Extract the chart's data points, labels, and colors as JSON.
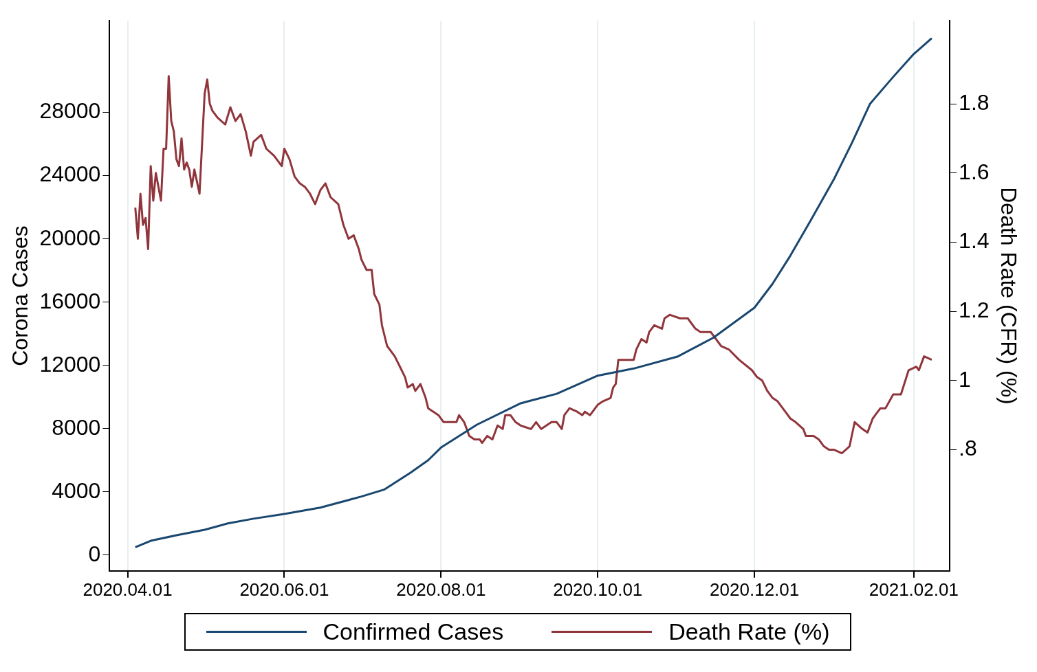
{
  "chart_data": {
    "type": "line",
    "ylabel": "Corona Cases",
    "y2label": "Death Rate (CFR) (%)",
    "xlim": [
      "2020-03-25",
      "2021-02-15"
    ],
    "xticks": [
      {
        "value": "2020-04-01",
        "label": "2020.04.01"
      },
      {
        "value": "2020-06-01",
        "label": "2020.06.01"
      },
      {
        "value": "2020-08-01",
        "label": "2020.08.01"
      },
      {
        "value": "2020-10-01",
        "label": "2020.10.01"
      },
      {
        "value": "2020-12-01",
        "label": "2020.12.01"
      },
      {
        "value": "2021-02-01",
        "label": "2021.02.01"
      }
    ],
    "ylim": [
      -1000,
      33800
    ],
    "yticks": [
      0,
      4000,
      8000,
      12000,
      16000,
      20000,
      24000,
      28000
    ],
    "y2lim": [
      0.45,
      2.04
    ],
    "y2ticks": [
      {
        "value": 0.8,
        "label": ".8"
      },
      1,
      1.2,
      1.4,
      1.6,
      1.8
    ],
    "grid": "x",
    "legend": "bottom",
    "line_style": "solid",
    "marker": "none",
    "series": [
      {
        "name": "Confirmed Cases",
        "color": "#1a476f",
        "x": [
          "2020-04-04",
          "2020-04-10",
          "2020-04-20",
          "2020-05-01",
          "2020-05-10",
          "2020-05-20",
          "2020-06-01",
          "2020-06-15",
          "2020-07-01",
          "2020-07-10",
          "2020-07-20",
          "2020-07-27",
          "2020-08-01",
          "2020-08-15",
          "2020-09-01",
          "2020-09-15",
          "2020-10-01",
          "2020-10-15",
          "2020-11-01",
          "2020-11-15",
          "2020-12-01",
          "2020-12-08",
          "2020-12-15",
          "2020-12-23",
          "2021-01-01",
          "2021-01-08",
          "2021-01-15",
          "2021-01-24",
          "2021-02-01",
          "2021-02-08"
        ],
        "values": [
          500,
          900,
          1250,
          1600,
          2000,
          2300,
          2600,
          3000,
          3700,
          4150,
          5200,
          6000,
          6800,
          8250,
          9600,
          10200,
          11350,
          11800,
          12550,
          13750,
          15650,
          17150,
          18950,
          21200,
          23800,
          26100,
          28550,
          30250,
          31700,
          32700
        ]
      },
      {
        "name": "Death Rate (%)",
        "color": "#90353b",
        "axis": "y2",
        "x": [
          "2020-04-04",
          "2020-04-05",
          "2020-04-06",
          "2020-04-07",
          "2020-04-08",
          "2020-04-09",
          "2020-04-10",
          "2020-04-11",
          "2020-04-12",
          "2020-04-14",
          "2020-04-15",
          "2020-04-16",
          "2020-04-17",
          "2020-04-18",
          "2020-04-19",
          "2020-04-20",
          "2020-04-21",
          "2020-04-22",
          "2020-04-23",
          "2020-04-24",
          "2020-04-25",
          "2020-04-26",
          "2020-04-27",
          "2020-04-29",
          "2020-05-01",
          "2020-05-02",
          "2020-05-03",
          "2020-05-04",
          "2020-05-06",
          "2020-05-09",
          "2020-05-11",
          "2020-05-13",
          "2020-05-15",
          "2020-05-17",
          "2020-05-19",
          "2020-05-20",
          "2020-05-23",
          "2020-05-25",
          "2020-05-28",
          "2020-05-31",
          "2020-06-01",
          "2020-06-03",
          "2020-06-05",
          "2020-06-07",
          "2020-06-09",
          "2020-06-11",
          "2020-06-13",
          "2020-06-15",
          "2020-06-17",
          "2020-06-19",
          "2020-06-22",
          "2020-06-24",
          "2020-06-26",
          "2020-06-28",
          "2020-06-30",
          "2020-07-01",
          "2020-07-03",
          "2020-07-05",
          "2020-07-06",
          "2020-07-08",
          "2020-07-09",
          "2020-07-11",
          "2020-07-14",
          "2020-07-16",
          "2020-07-18",
          "2020-07-19",
          "2020-07-21",
          "2020-07-22",
          "2020-07-24",
          "2020-07-26",
          "2020-07-27",
          "2020-07-31",
          "2020-08-02",
          "2020-08-07",
          "2020-08-08",
          "2020-08-10",
          "2020-08-12",
          "2020-08-14",
          "2020-08-16",
          "2020-08-17",
          "2020-08-19",
          "2020-08-21",
          "2020-08-23",
          "2020-08-25",
          "2020-08-26",
          "2020-08-28",
          "2020-08-30",
          "2020-09-01",
          "2020-09-05",
          "2020-09-07",
          "2020-09-09",
          "2020-09-13",
          "2020-09-15",
          "2020-09-17",
          "2020-09-18",
          "2020-09-20",
          "2020-09-23",
          "2020-09-25",
          "2020-09-26",
          "2020-09-28",
          "2020-09-30",
          "2020-10-01",
          "2020-10-03",
          "2020-10-06",
          "2020-10-07",
          "2020-10-08",
          "2020-10-09",
          "2020-10-13",
          "2020-10-15",
          "2020-10-16",
          "2020-10-18",
          "2020-10-20",
          "2020-10-21",
          "2020-10-23",
          "2020-10-26",
          "2020-10-27",
          "2020-10-29",
          "2020-11-02",
          "2020-11-05",
          "2020-11-06",
          "2020-11-08",
          "2020-11-10",
          "2020-11-11",
          "2020-11-14",
          "2020-11-16",
          "2020-11-18",
          "2020-11-21",
          "2020-11-25",
          "2020-11-30",
          "2020-12-02",
          "2020-12-04",
          "2020-12-06",
          "2020-12-08",
          "2020-12-10",
          "2020-12-13",
          "2020-12-15",
          "2020-12-17",
          "2020-12-20",
          "2020-12-21",
          "2020-12-24",
          "2020-12-26",
          "2020-12-28",
          "2020-12-30",
          "2021-01-01",
          "2021-01-04",
          "2021-01-07",
          "2021-01-09",
          "2021-01-12",
          "2021-01-14",
          "2021-01-16",
          "2021-01-17",
          "2021-01-19",
          "2021-01-21",
          "2021-01-24",
          "2021-01-27",
          "2021-01-30",
          "2021-02-02",
          "2021-02-03",
          "2021-02-05",
          "2021-02-08"
        ],
        "values": [
          1.5,
          1.41,
          1.54,
          1.45,
          1.47,
          1.38,
          1.62,
          1.52,
          1.6,
          1.52,
          1.67,
          1.67,
          1.88,
          1.75,
          1.72,
          1.64,
          1.62,
          1.7,
          1.61,
          1.63,
          1.61,
          1.56,
          1.61,
          1.54,
          1.83,
          1.87,
          1.8,
          1.78,
          1.76,
          1.74,
          1.79,
          1.75,
          1.77,
          1.72,
          1.65,
          1.69,
          1.71,
          1.67,
          1.65,
          1.62,
          1.67,
          1.64,
          1.59,
          1.57,
          1.56,
          1.54,
          1.51,
          1.55,
          1.57,
          1.53,
          1.51,
          1.45,
          1.41,
          1.42,
          1.38,
          1.35,
          1.32,
          1.32,
          1.25,
          1.22,
          1.16,
          1.1,
          1.07,
          1.04,
          1.01,
          0.98,
          0.99,
          0.97,
          0.99,
          0.95,
          0.92,
          0.9,
          0.88,
          0.88,
          0.9,
          0.88,
          0.84,
          0.83,
          0.83,
          0.82,
          0.84,
          0.83,
          0.87,
          0.86,
          0.9,
          0.9,
          0.88,
          0.87,
          0.86,
          0.88,
          0.86,
          0.88,
          0.88,
          0.86,
          0.9,
          0.92,
          0.91,
          0.9,
          0.91,
          0.9,
          0.92,
          0.93,
          0.94,
          0.95,
          0.98,
          0.99,
          1.06,
          1.06,
          1.06,
          1.09,
          1.12,
          1.11,
          1.14,
          1.16,
          1.15,
          1.18,
          1.19,
          1.18,
          1.18,
          1.17,
          1.15,
          1.14,
          1.14,
          1.14,
          1.12,
          1.1,
          1.09,
          1.06,
          1.03,
          1.01,
          1.0,
          0.97,
          0.95,
          0.94,
          0.91,
          0.89,
          0.88,
          0.86,
          0.84,
          0.84,
          0.83,
          0.81,
          0.8,
          0.8,
          0.79,
          0.81,
          0.88,
          0.86,
          0.85,
          0.89,
          0.9,
          0.92,
          0.92,
          0.96,
          0.96,
          1.03,
          1.04,
          1.03,
          1.07,
          1.06
        ]
      }
    ]
  }
}
